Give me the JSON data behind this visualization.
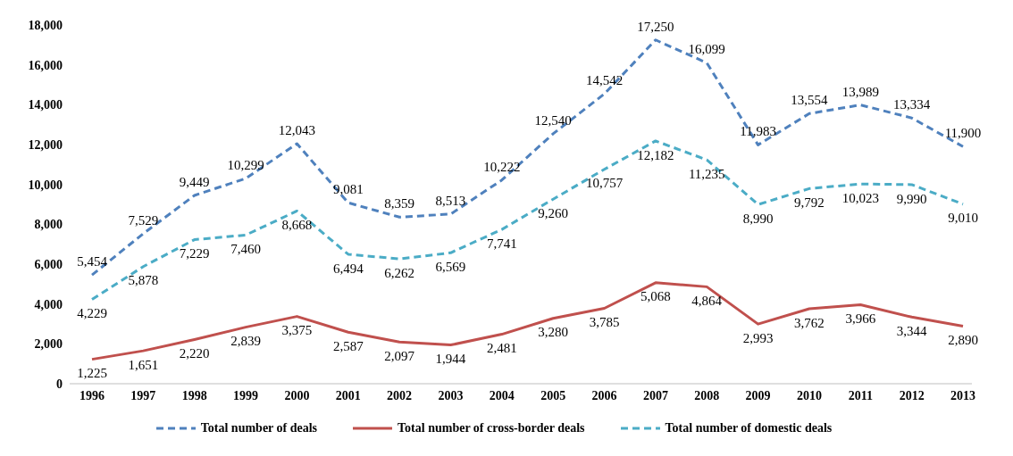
{
  "chart_data": {
    "type": "line",
    "categories": [
      "1996",
      "1997",
      "1998",
      "1999",
      "2000",
      "2001",
      "2002",
      "2003",
      "2004",
      "2005",
      "2006",
      "2007",
      "2008",
      "2009",
      "2010",
      "2011",
      "2012",
      "2013"
    ],
    "series": [
      {
        "name": "Total number of deals",
        "color": "#4f81bd",
        "line_style": "dashed",
        "values": [
          5454,
          7529,
          9449,
          10299,
          12043,
          9081,
          8359,
          8513,
          10222,
          12540,
          14542,
          17250,
          16099,
          11983,
          13554,
          13989,
          13334,
          11900
        ],
        "value_labels": [
          "5,454",
          "7,529",
          "9,449",
          "10,299",
          "12,043",
          "9,081",
          "8,359",
          "8,513",
          "10,222",
          "12,540",
          "14,542",
          "17,250",
          "16,099",
          "11,983",
          "13,554",
          "13,989",
          "13,334",
          "11,900"
        ]
      },
      {
        "name": "Total number of cross-border deals",
        "color": "#c0504d",
        "line_style": "solid",
        "values": [
          1225,
          1651,
          2220,
          2839,
          3375,
          2587,
          2097,
          1944,
          2481,
          3280,
          3785,
          5068,
          4864,
          2993,
          3762,
          3966,
          3344,
          2890
        ],
        "value_labels": [
          "1,225",
          "1,651",
          "2,220",
          "2,839",
          "3,375",
          "2,587",
          "2,097",
          "1,944",
          "2,481",
          "3,280",
          "3,785",
          "5,068",
          "4,864",
          "2,993",
          "3,762",
          "3,966",
          "3,344",
          "2,890"
        ]
      },
      {
        "name": "Total number of domestic deals",
        "color": "#4bacc6",
        "line_style": "dashed",
        "values": [
          4229,
          5878,
          7229,
          7460,
          8668,
          6494,
          6262,
          6569,
          7741,
          9260,
          10757,
          12182,
          11235,
          8990,
          9792,
          10023,
          9990,
          9010
        ],
        "value_labels": [
          "4,229",
          "5,878",
          "7,229",
          "7,460",
          "8,668",
          "6,494",
          "6,262",
          "6,569",
          "7,741",
          "9,260",
          "10,757",
          "12,182",
          "11,235",
          "8,990",
          "9,792",
          "10,023",
          "9,990",
          "9,010"
        ]
      }
    ],
    "ylim": [
      0,
      18000
    ],
    "yticks": [
      {
        "value": 0,
        "label": "0"
      },
      {
        "value": 2000,
        "label": "2,000"
      },
      {
        "value": 4000,
        "label": "4,000"
      },
      {
        "value": 6000,
        "label": "6,000"
      },
      {
        "value": 8000,
        "label": "8,000"
      },
      {
        "value": 10000,
        "label": "10,000"
      },
      {
        "value": 12000,
        "label": "12,000"
      },
      {
        "value": 14000,
        "label": "14,000"
      },
      {
        "value": 16000,
        "label": "16,000"
      },
      {
        "value": 18000,
        "label": "18,000"
      }
    ],
    "grid": false,
    "legend": "bottom",
    "marker": "none"
  }
}
